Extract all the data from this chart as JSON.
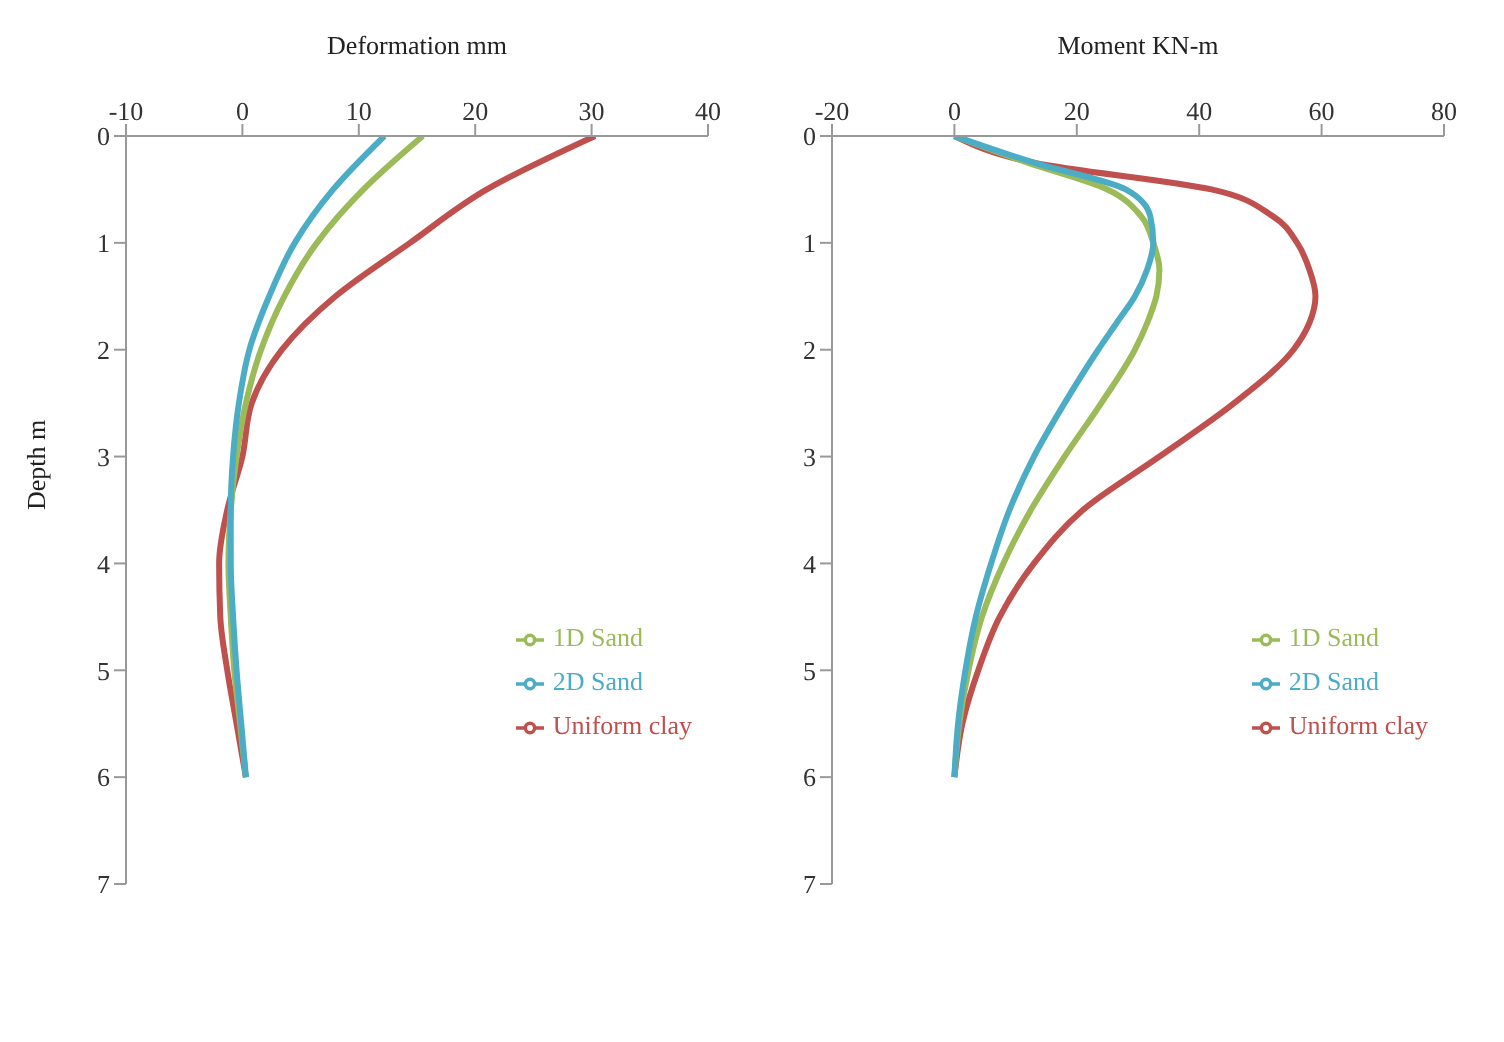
{
  "chart_data": [
    {
      "type": "line",
      "xlabel": "Deformation mm",
      "ylabel": "Depth m",
      "xlim": [
        -10,
        40
      ],
      "xticks": [
        -10,
        0,
        10,
        20,
        30,
        40
      ],
      "ylim": [
        7,
        0
      ],
      "yticks": [
        0,
        1,
        2,
        3,
        4,
        5,
        6,
        7
      ],
      "grid": false,
      "legend": "right",
      "marker": "none",
      "line_style": "solid",
      "series": [
        {
          "name": "Uniform clay",
          "color": "#c0504d",
          "x": [
            30.3,
            21,
            14.4,
            8,
            3.4,
            0.8,
            0,
            -1.3,
            -2,
            -1.9,
            -1.3,
            -0.5,
            0.3
          ],
          "values": [
            0,
            0.5,
            1,
            1.5,
            2,
            2.5,
            3,
            3.5,
            4,
            4.5,
            5,
            5.5,
            6
          ]
        },
        {
          "name": "1D Sand",
          "color": "#9bbb59",
          "x": [
            15.5,
            10.4,
            6.4,
            3.6,
            1.6,
            0.3,
            -0.5,
            -1,
            -1.2,
            -1,
            -0.7,
            -0.2,
            0.3
          ],
          "values": [
            0,
            0.5,
            1,
            1.5,
            2,
            2.5,
            3,
            3.5,
            4,
            4.5,
            5,
            5.5,
            6
          ]
        },
        {
          "name": "2D Sand",
          "color": "#4bacc6",
          "x": [
            12.2,
            7.8,
            4.5,
            2.3,
            0.6,
            -0.3,
            -0.8,
            -1,
            -1,
            -0.8,
            -0.5,
            -0.1,
            0.3
          ],
          "values": [
            0,
            0.5,
            1,
            1.5,
            2,
            2.5,
            3,
            3.5,
            4,
            4.5,
            5,
            5.5,
            6
          ]
        }
      ]
    },
    {
      "type": "line",
      "xlabel": "Moment KN-m",
      "xlim": [
        -20,
        80
      ],
      "xticks": [
        -20,
        0,
        20,
        40,
        60,
        80
      ],
      "ylim": [
        7,
        0
      ],
      "yticks": [
        0,
        1,
        2,
        3,
        4,
        5,
        6,
        7
      ],
      "grid": false,
      "legend": "right",
      "marker": "none",
      "line_style": "solid",
      "series": [
        {
          "name": "Uniform clay",
          "color": "#c0504d",
          "x": [
            0,
            13,
            42,
            52,
            56,
            58,
            59,
            58,
            55.4,
            45.7,
            33.5,
            21,
            13,
            7.4,
            3.9,
            1.3,
            0
          ],
          "values": [
            0,
            0.25,
            0.5,
            0.75,
            1,
            1.25,
            1.5,
            1.75,
            2,
            2.5,
            3,
            3.5,
            4,
            4.5,
            5,
            5.5,
            6
          ]
        },
        {
          "name": "1D Sand",
          "color": "#9bbb59",
          "x": [
            0,
            12,
            25,
            30.5,
            32.5,
            33.5,
            33,
            31.5,
            29.5,
            24,
            18,
            12.5,
            8,
            4.5,
            2.3,
            0.8,
            0
          ],
          "values": [
            0,
            0.25,
            0.5,
            0.75,
            1,
            1.25,
            1.5,
            1.75,
            2,
            2.5,
            3,
            3.5,
            4,
            4.5,
            5,
            5.5,
            6
          ]
        },
        {
          "name": "2D Sand",
          "color": "#4bacc6",
          "x": [
            0,
            13,
            28,
            32,
            32.5,
            31.5,
            29.5,
            26.5,
            23.5,
            18,
            13,
            9,
            6,
            3.5,
            1.8,
            0.6,
            0
          ],
          "values": [
            0,
            0.25,
            0.5,
            0.75,
            1,
            1.25,
            1.5,
            1.75,
            2,
            2.5,
            3,
            3.5,
            4,
            4.5,
            5,
            5.5,
            6
          ]
        }
      ]
    }
  ]
}
